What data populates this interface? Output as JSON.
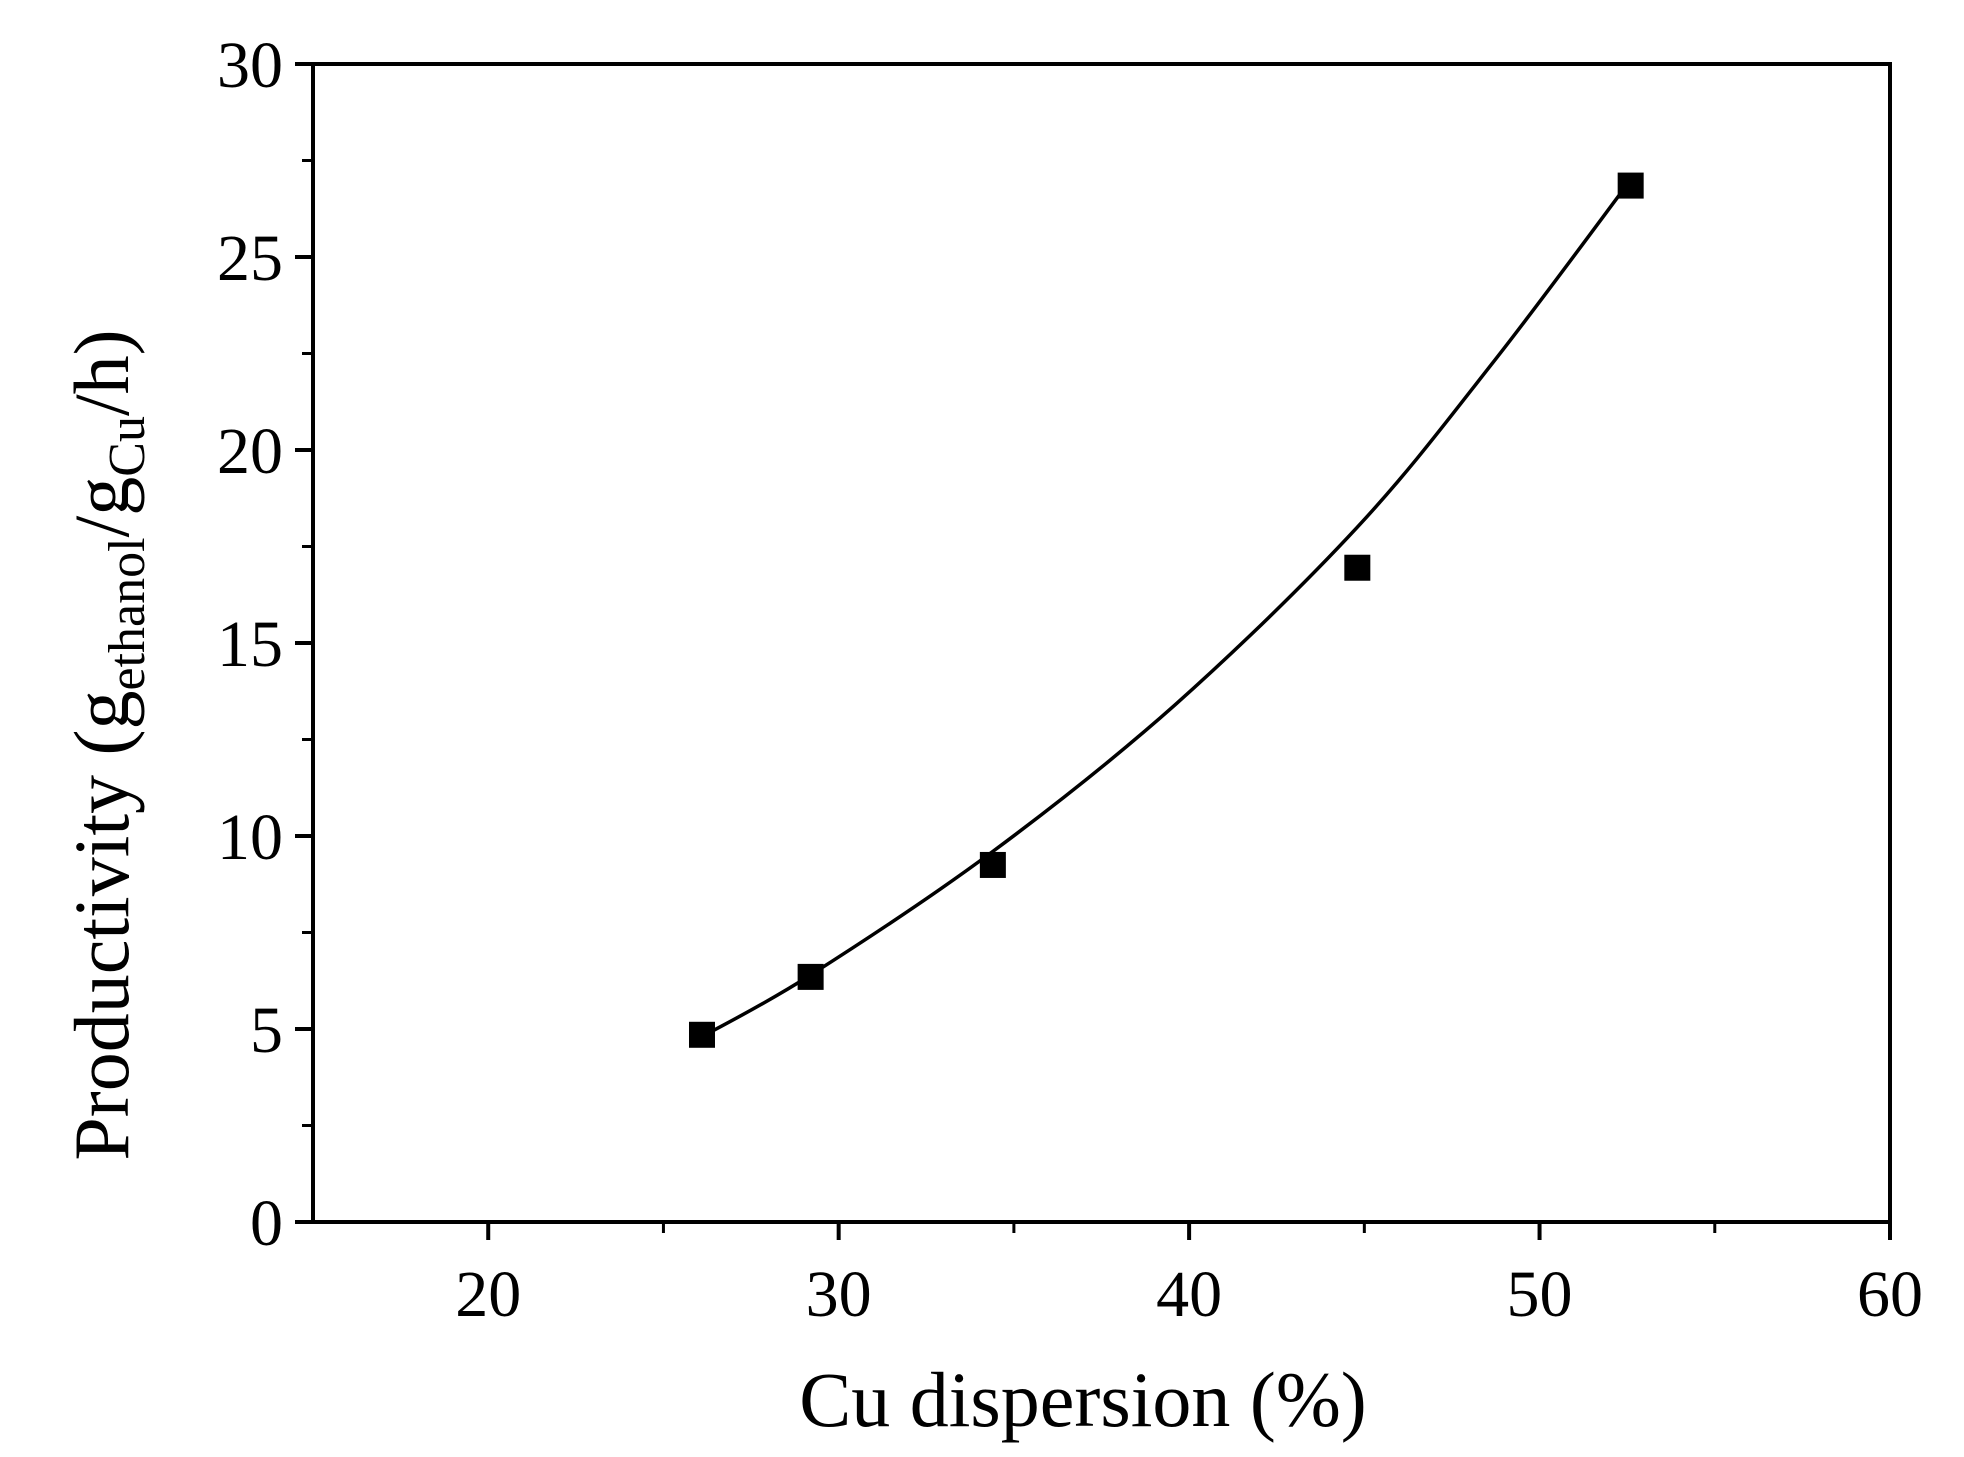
{
  "chart_data": {
    "type": "scatter",
    "xlabel": "Cu dispersion (%)",
    "ylabel": {
      "prefix": "Productivity (g",
      "sub1": "ethanol",
      "mid": "/g",
      "sub2": "Cu",
      "suffix": "/h)"
    },
    "xlim": [
      15,
      60
    ],
    "ylim": [
      0,
      30
    ],
    "xticks": [
      20,
      30,
      40,
      50,
      60
    ],
    "xminor": [
      25,
      35,
      45,
      55
    ],
    "yticks": [
      0,
      5,
      10,
      15,
      20,
      25,
      30
    ],
    "yminor": [
      2.5,
      7.5,
      12.5,
      17.5,
      22.5,
      27.5
    ],
    "series": [
      {
        "marker": "square",
        "color": "#000000",
        "x": [
          26.1,
          29.2,
          34.4,
          44.8,
          52.6
        ],
        "y": [
          4.85,
          6.35,
          9.25,
          16.95,
          26.85
        ]
      }
    ],
    "fit": {
      "type": "exponential curve",
      "color": "#000000",
      "x": [
        26.1,
        29.2,
        34.4,
        39.6,
        44.8,
        48.7,
        52.6
      ],
      "y": [
        4.8,
        6.4,
        9.6,
        13.4,
        18.0,
        22.3,
        27.0
      ]
    },
    "grid": false,
    "legend": "none"
  }
}
